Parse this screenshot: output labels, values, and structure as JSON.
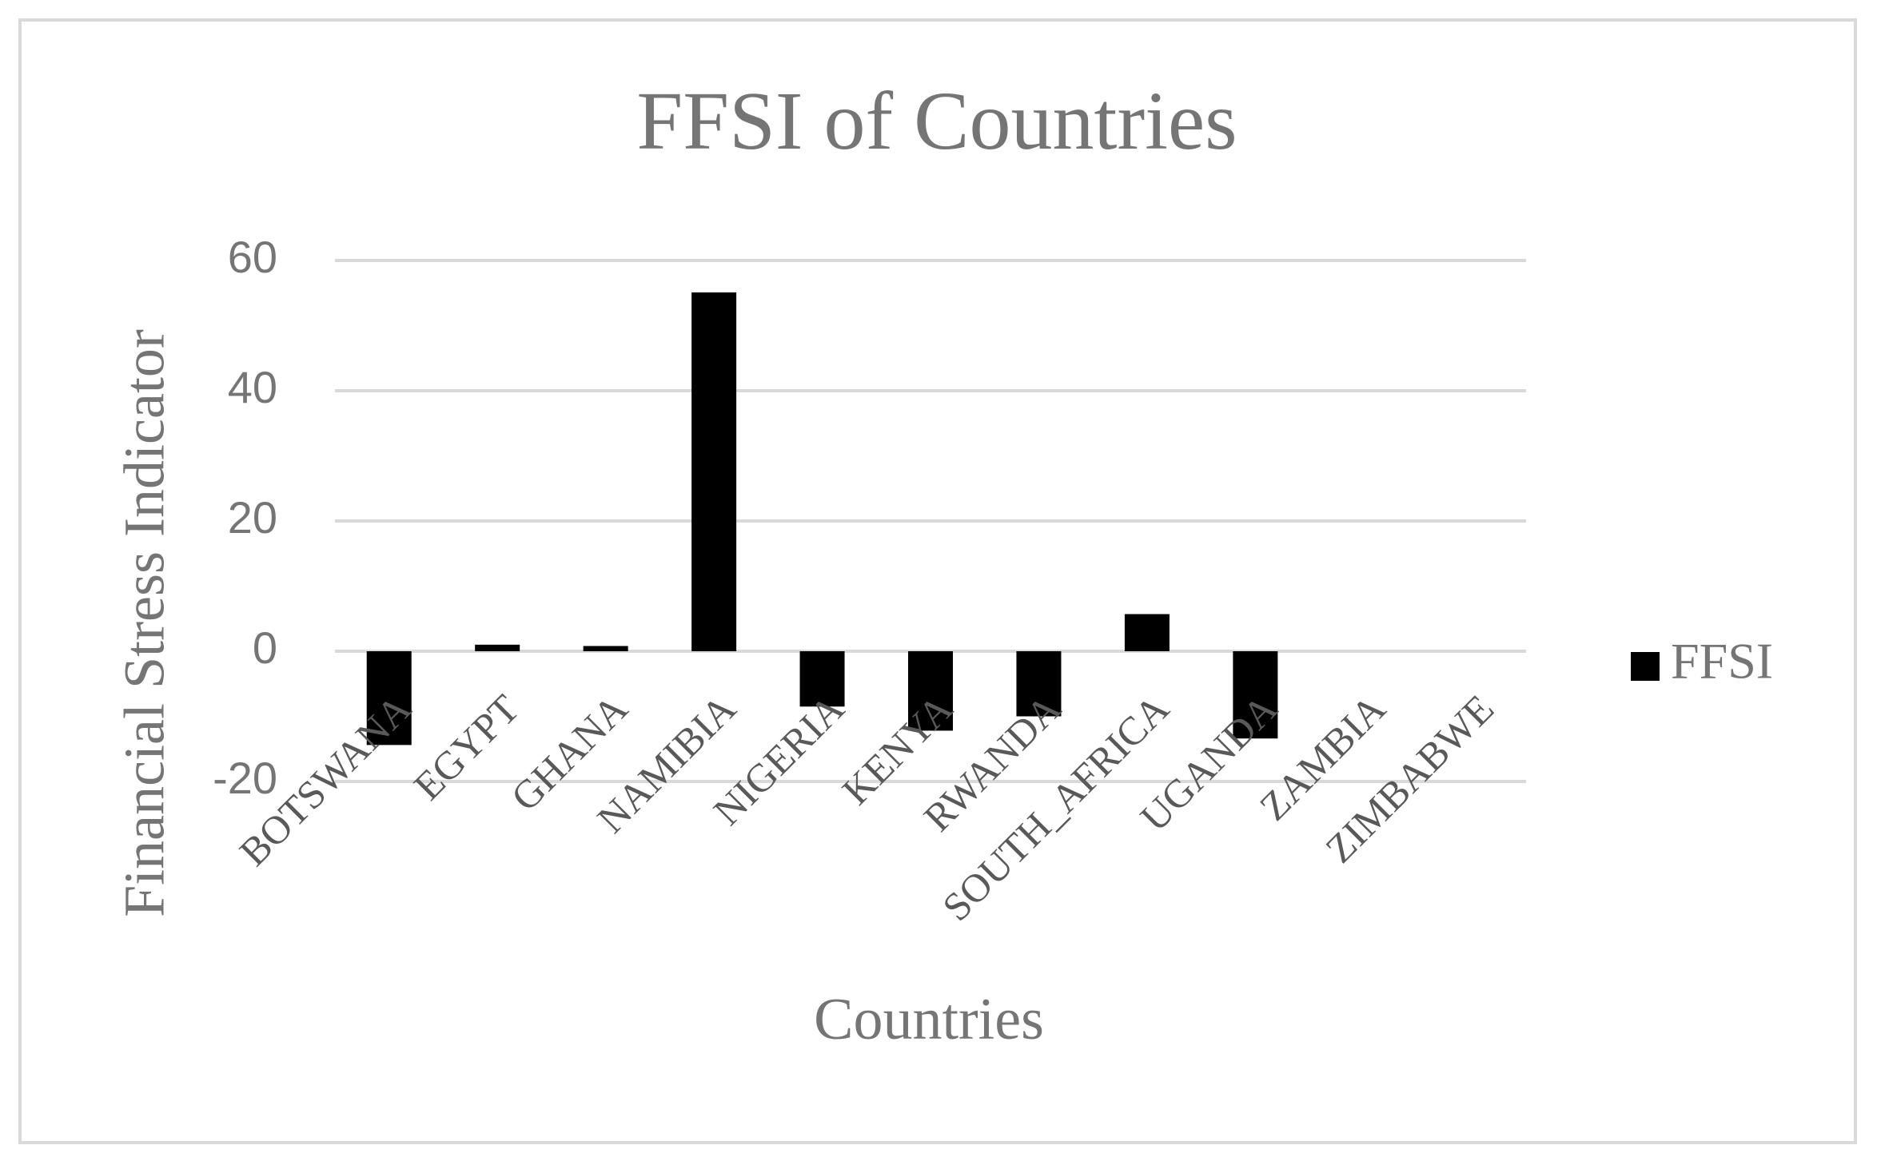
{
  "chart_data": {
    "type": "bar",
    "title": "FFSI of Countries",
    "x_label": "Countries",
    "y_label": "Financial Stress Indicator",
    "categories": [
      "BOTSWANA",
      "EGYPT",
      "GHANA",
      "NAMIBIA",
      "NIGERIA",
      "KENYA",
      "RWANDA",
      "SOUTH_AFRICA",
      "UGANDA",
      "ZAMBIA",
      "ZIMBABWE"
    ],
    "series": [
      {
        "name": "FFSI",
        "color": "#000000",
        "values": [
          -14.4,
          1,
          0.8,
          55.1,
          -8.5,
          -12.2,
          -10,
          5.7,
          -13.4,
          0,
          0
        ]
      }
    ],
    "ylim": [
      -20,
      60
    ],
    "yticks": [
      -20,
      0,
      20,
      40,
      60
    ],
    "grid": true,
    "legend": "right"
  }
}
